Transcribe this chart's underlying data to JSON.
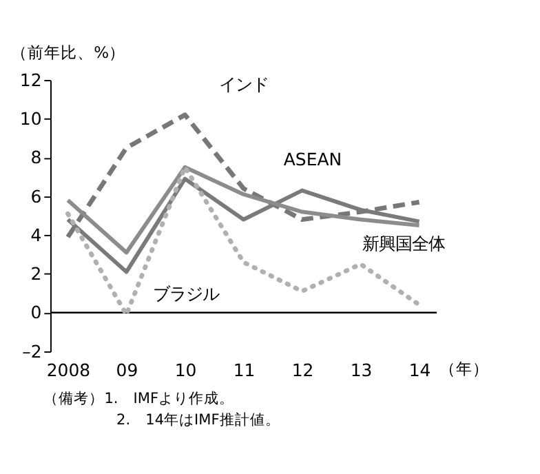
{
  "chart_data": {
    "type": "line",
    "ylabel": "（前年比、%）",
    "xlabel": "（年）",
    "categories": [
      "2008",
      "09",
      "10",
      "11",
      "12",
      "13",
      "14"
    ],
    "series": [
      {
        "name": "インド",
        "color": "#777777",
        "line_style": "dashed",
        "values": [
          3.9,
          8.5,
          10.2,
          6.4,
          4.8,
          5.2,
          5.7
        ]
      },
      {
        "name": "ASEAN",
        "color": "#7a7a7a",
        "line_style": "solid",
        "values": [
          4.8,
          2.1,
          6.9,
          4.8,
          6.3,
          5.3,
          4.7
        ]
      },
      {
        "name": "新興国全体",
        "color": "#8c8c8c",
        "line_style": "solid",
        "values": [
          5.8,
          3.1,
          7.5,
          6.1,
          5.2,
          4.8,
          4.5
        ]
      },
      {
        "name": "ブラジル",
        "color": "#b0b0b0",
        "line_style": "dotted",
        "values": [
          5.1,
          -0.1,
          7.5,
          2.6,
          1.1,
          2.5,
          0.4
        ]
      }
    ],
    "ylim": [
      -2,
      12
    ],
    "yticks": [
      {
        "value": -2,
        "label": "–2"
      },
      0,
      2,
      4,
      6,
      8,
      10,
      12
    ],
    "ref_lines": [
      {
        "axis": "y",
        "value": 0,
        "color": "#000000"
      }
    ],
    "grid": false,
    "marker": "none",
    "annotations": [
      "（備考）1.　IMFより作成。",
      "2.　14年はIMF推計値。"
    ]
  }
}
